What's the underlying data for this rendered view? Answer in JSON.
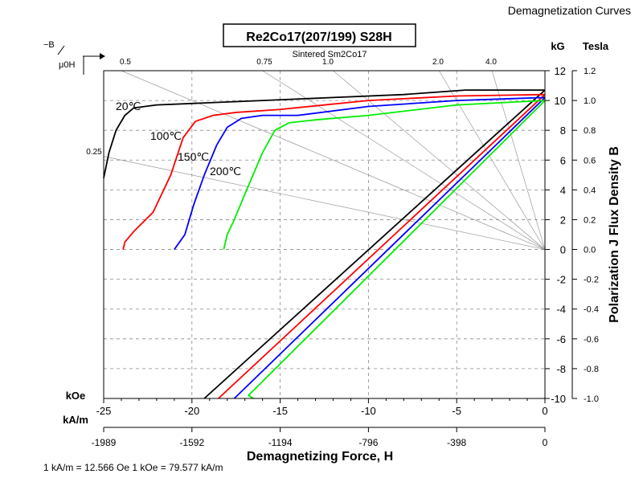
{
  "header": {
    "corner_title": "Demagnetization Curves",
    "material_title": "Re2Co17(207/199) S28H",
    "top_axis_label": "Sintered Sm2Co17",
    "left_symbol_b": "−B",
    "left_symbol_h": "μ0H",
    "conversion_note": "1 kA/m = 12.566 Oe 1 kOe = 79.577 kA/m"
  },
  "axes": {
    "x_kOe": {
      "unit": "kOe",
      "min": -25,
      "max": 0,
      "ticks": [
        "-25",
        "-20",
        "-15",
        "-10",
        "-5",
        "0"
      ]
    },
    "x_kAm": {
      "unit": "kA/m",
      "ticks": [
        "-1989",
        "-1592",
        "-1194",
        "-796",
        "-398",
        "0"
      ]
    },
    "x_title": "Demagnetizing Force, H",
    "y_kG": {
      "unit": "kG",
      "min": -10,
      "max": 12,
      "ticks": [
        "12",
        "10",
        "8",
        "6",
        "4",
        "2",
        "0",
        "-2",
        "-4",
        "-6",
        "-8",
        "-10"
      ]
    },
    "y_tesla": {
      "unit": "Tesla",
      "ticks": [
        "1.2",
        "1.0",
        "0.8",
        "0.6",
        "0.4",
        "0.2",
        "0.0",
        "-0.2",
        "-0.4",
        "-0.6",
        "-0.8",
        "-1.0"
      ]
    },
    "y_title": "Polarization J Flux Density B",
    "permeance_ticks": [
      "0.5",
      "0.75",
      "1.0",
      "2.0",
      "4.0",
      "0.25"
    ]
  },
  "chart_data": {
    "type": "line",
    "title": "Re2Co17(207/199) S28H",
    "xlabel": "Demagnetizing Force, H",
    "ylabel": "Polarization J Flux Density B",
    "x_unit": "kOe",
    "y_unit": "kG",
    "xlim": [
      -25,
      0
    ],
    "ylim": [
      -10,
      12
    ],
    "grid": true,
    "temperature_labels": [
      "20℃",
      "100℃",
      "150℃",
      "200℃"
    ],
    "series": [
      {
        "label": "20℃",
        "color": "#000000",
        "J_curve": [
          [
            0,
            10.7
          ],
          [
            -4.5,
            10.7
          ],
          [
            -8,
            10.4
          ],
          [
            -12,
            10.2
          ],
          [
            -16,
            10.0
          ],
          [
            -20,
            9.8
          ],
          [
            -22,
            9.7
          ],
          [
            -23.3,
            9.5
          ],
          [
            -23.8,
            9.0
          ],
          [
            -24.3,
            8.0
          ],
          [
            -24.7,
            6.5
          ],
          [
            -25,
            4.8
          ]
        ],
        "B_line": [
          [
            0,
            10.7
          ],
          [
            -19.3,
            -10
          ]
        ]
      },
      {
        "label": "100℃",
        "color": "#ff0000",
        "J_curve": [
          [
            0,
            10.4
          ],
          [
            -5,
            10.3
          ],
          [
            -10,
            10.0
          ],
          [
            -15,
            9.4
          ],
          [
            -17.5,
            9.2
          ],
          [
            -18.8,
            9.0
          ],
          [
            -19.8,
            8.6
          ],
          [
            -20.5,
            7.5
          ],
          [
            -21.2,
            5.0
          ],
          [
            -22.2,
            2.5
          ],
          [
            -23.3,
            1.2
          ],
          [
            -23.8,
            0.5
          ],
          [
            -23.9,
            0
          ]
        ],
        "B_line": [
          [
            0,
            10.4
          ],
          [
            -18.5,
            -10
          ]
        ]
      },
      {
        "label": "150℃",
        "color": "#0000ff",
        "J_curve": [
          [
            0,
            10.2
          ],
          [
            -5,
            10.0
          ],
          [
            -10,
            9.6
          ],
          [
            -14,
            9.0
          ],
          [
            -16,
            9.0
          ],
          [
            -17.2,
            8.8
          ],
          [
            -18,
            8.2
          ],
          [
            -18.6,
            7.0
          ],
          [
            -19.3,
            5.0
          ],
          [
            -19.9,
            3.0
          ],
          [
            -20.4,
            1.0
          ],
          [
            -21,
            0
          ]
        ],
        "B_line": [
          [
            0,
            10.2
          ],
          [
            -17.6,
            -10
          ]
        ]
      },
      {
        "label": "200℃",
        "color": "#00ee00",
        "J_curve": [
          [
            0,
            10.0
          ],
          [
            -5,
            9.7
          ],
          [
            -10,
            9.0
          ],
          [
            -13,
            8.7
          ],
          [
            -14.5,
            8.5
          ],
          [
            -15.3,
            8.0
          ],
          [
            -16,
            6.5
          ],
          [
            -16.9,
            4.0
          ],
          [
            -17.6,
            2.0
          ],
          [
            -18,
            1.0
          ],
          [
            -18.2,
            0
          ]
        ],
        "B_line": [
          [
            0,
            10.0
          ],
          [
            -16.8,
            -9.8
          ],
          [
            -16.5,
            -10
          ]
        ]
      }
    ]
  }
}
